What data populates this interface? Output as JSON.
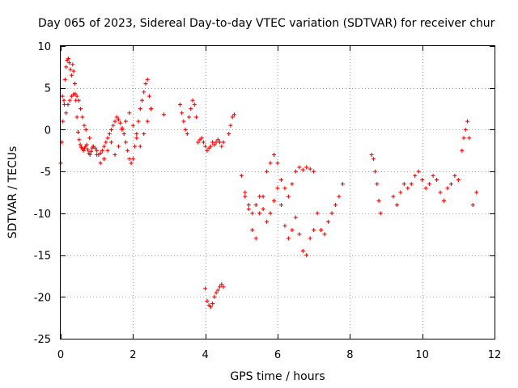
{
  "chart_data": {
    "type": "scatter",
    "title": "Day 065 of 2023, Sidereal Day-to-day VTEC variation (SDTVAR) for receiver chur",
    "xlabel": "GPS time / hours",
    "ylabel": "SDTVAR / TECUs",
    "xlim": [
      0,
      12
    ],
    "ylim": [
      -25,
      10
    ],
    "xticks": [
      0,
      2,
      4,
      6,
      8,
      10,
      12
    ],
    "yticks": [
      -25,
      -20,
      -15,
      -10,
      -5,
      0,
      5,
      10
    ],
    "xtick_labels": [
      "0",
      "2",
      "4",
      "6",
      "8",
      "10",
      "12"
    ],
    "ytick_labels": [
      "-25",
      "-20",
      "-15",
      "-10",
      "-5",
      "0",
      "5",
      "10"
    ],
    "grid": true,
    "marker": "+",
    "color": "#ff0000",
    "series": [
      {
        "name": "SDTVAR",
        "x": [
          0.0,
          0.03,
          0.06,
          0.09,
          0.12,
          0.15,
          0.18,
          0.21,
          0.24,
          0.27,
          0.3,
          0.33,
          0.36,
          0.39,
          0.42,
          0.45,
          0.48,
          0.51,
          0.54,
          0.57,
          0.6,
          0.63,
          0.66,
          0.69,
          0.72,
          0.75,
          0.78,
          0.81,
          0.84,
          0.87,
          0.9,
          0.95,
          1.0,
          1.05,
          1.1,
          1.15,
          1.2,
          1.25,
          1.3,
          1.35,
          1.4,
          1.45,
          1.5,
          1.55,
          1.6,
          1.65,
          1.7,
          1.75,
          1.8,
          1.85,
          1.9,
          1.95,
          2.0,
          2.05,
          2.1,
          2.15,
          2.2,
          2.25,
          2.3,
          2.35,
          2.4,
          2.45,
          2.5,
          0.05,
          0.1,
          0.15,
          0.2,
          0.25,
          0.3,
          0.35,
          0.4,
          0.45,
          0.5,
          0.55,
          0.6,
          0.65,
          0.7,
          0.8,
          0.9,
          1.0,
          1.1,
          1.2,
          1.3,
          1.4,
          1.5,
          1.6,
          1.7,
          1.8,
          1.9,
          2.0,
          2.1,
          2.2,
          2.3,
          2.4,
          2.5,
          2.85,
          3.3,
          3.35,
          3.4,
          3.45,
          3.5,
          3.55,
          3.6,
          3.65,
          3.7,
          3.75,
          3.8,
          3.85,
          3.9,
          3.95,
          4.0,
          4.05,
          4.1,
          4.15,
          4.2,
          4.25,
          4.3,
          4.35,
          4.4,
          4.45,
          4.5,
          4.65,
          4.7,
          4.75,
          4.8,
          4.0,
          4.05,
          4.1,
          4.15,
          4.2,
          4.25,
          4.3,
          4.35,
          4.4,
          4.45,
          4.5,
          5.0,
          5.1,
          5.2,
          5.3,
          5.4,
          5.5,
          5.6,
          5.7,
          5.8,
          5.9,
          6.0,
          6.1,
          6.2,
          6.3,
          6.4,
          6.5,
          6.6,
          6.7,
          6.8,
          6.9,
          7.0,
          5.1,
          5.2,
          5.3,
          5.4,
          5.5,
          5.6,
          5.7,
          5.8,
          5.9,
          6.0,
          6.1,
          6.2,
          6.3,
          6.4,
          6.5,
          6.6,
          6.7,
          6.8,
          6.9,
          7.0,
          7.1,
          7.2,
          7.3,
          7.4,
          7.5,
          7.6,
          7.7,
          7.8,
          8.6,
          8.65,
          8.7,
          8.75,
          8.8,
          8.85,
          9.2,
          9.3,
          9.4,
          9.5,
          9.6,
          9.7,
          9.8,
          9.9,
          10.0,
          10.1,
          10.2,
          10.3,
          10.4,
          10.5,
          10.6,
          10.7,
          10.8,
          10.9,
          11.0,
          11.1,
          11.15,
          11.2,
          11.25,
          11.3,
          11.4,
          11.5
        ],
        "y": [
          -4.0,
          -1.5,
          1.0,
          3.5,
          6.0,
          7.5,
          8.3,
          8.5,
          8.0,
          7.2,
          6.5,
          7.8,
          7.0,
          5.5,
          3.5,
          1.5,
          -0.3,
          -1.2,
          -1.8,
          -2.1,
          -2.3,
          -2.5,
          -2.2,
          -2.0,
          -1.8,
          -2.4,
          -2.8,
          -3.0,
          -2.6,
          -2.2,
          -2.0,
          -2.2,
          -2.5,
          -3.0,
          -2.8,
          -2.5,
          -2.0,
          -1.5,
          -1.0,
          -0.5,
          0.0,
          0.5,
          1.0,
          1.5,
          1.2,
          0.8,
          0.2,
          -0.5,
          -1.5,
          -2.5,
          -3.5,
          -4.0,
          -3.5,
          -2.0,
          -0.5,
          1.0,
          2.5,
          3.5,
          4.5,
          5.5,
          6.0,
          4.0,
          2.5,
          4.0,
          3.0,
          2.0,
          3.0,
          3.5,
          4.0,
          4.2,
          4.3,
          4.0,
          3.5,
          2.5,
          1.5,
          0.5,
          0.0,
          -1.0,
          -2.0,
          -3.0,
          -4.0,
          -3.5,
          -2.5,
          -1.5,
          -3.0,
          -2.0,
          0.0,
          1.0,
          2.0,
          0.5,
          -1.0,
          -2.0,
          -0.5,
          1.0,
          2.5,
          1.8,
          3.0,
          2.0,
          1.0,
          0.0,
          -0.5,
          1.5,
          2.5,
          3.5,
          3.0,
          1.5,
          -1.5,
          -1.2,
          -1.0,
          -1.5,
          -2.0,
          -2.5,
          -2.2,
          -2.0,
          -1.5,
          -1.8,
          -1.5,
          -1.2,
          -1.5,
          -2.0,
          -1.5,
          -0.5,
          0.5,
          1.5,
          1.8,
          -19.0,
          -20.5,
          -21.0,
          -21.2,
          -20.8,
          -20.0,
          -19.5,
          -19.2,
          -18.8,
          -18.5,
          -18.8,
          -5.5,
          -7.5,
          -9.0,
          -10.0,
          -9.0,
          -8.0,
          -9.5,
          -11.0,
          -10.0,
          -8.5,
          -7.0,
          -9.0,
          -11.5,
          -13.0,
          -12.0,
          -10.5,
          -12.5,
          -14.5,
          -15.0,
          -13.0,
          -12.0,
          -8.0,
          -9.5,
          -12.0,
          -13.0,
          -10.0,
          -8.0,
          -5.0,
          -4.0,
          -3.0,
          -4.0,
          -6.0,
          -7.0,
          -8.0,
          -6.5,
          -5.0,
          -4.5,
          -4.8,
          -4.5,
          -4.7,
          -5.0,
          -10.0,
          -12.0,
          -12.5,
          -11.0,
          -10.0,
          -9.0,
          -8.0,
          -6.5,
          -3.0,
          -3.5,
          -5.0,
          -6.5,
          -8.5,
          -10.0,
          -8.0,
          -9.0,
          -7.5,
          -6.5,
          -7.0,
          -6.5,
          -5.5,
          -5.0,
          -6.0,
          -7.0,
          -6.5,
          -5.5,
          -6.0,
          -7.5,
          -8.5,
          -7.0,
          -6.5,
          -5.5,
          -6.0,
          -2.5,
          -1.0,
          0.0,
          1.0,
          -1.0,
          -9.0,
          -7.5
        ]
      }
    ]
  }
}
